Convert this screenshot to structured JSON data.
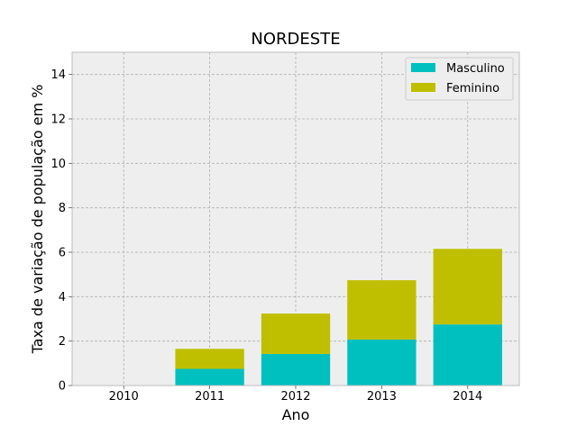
{
  "chart_data": {
    "type": "bar",
    "stacked": true,
    "title": "NORDESTE",
    "xlabel": "Ano",
    "ylabel": "Taxa de variação de população em %",
    "categories": [
      "2010",
      "2011",
      "2012",
      "2013",
      "2014"
    ],
    "series": [
      {
        "name": "Masculino",
        "color": "#00bfbf",
        "values": [
          0,
          0.75,
          1.42,
          2.07,
          2.75
        ]
      },
      {
        "name": "Feminino",
        "color": "#bfbf00",
        "values": [
          0,
          0.9,
          1.82,
          2.67,
          3.4
        ]
      }
    ],
    "ylim": [
      0,
      15
    ],
    "yticks": [
      0,
      2,
      4,
      6,
      8,
      10,
      12,
      14
    ],
    "ytick_labels": [
      "0",
      "2",
      "4",
      "6",
      "8",
      "10",
      "12",
      "14"
    ],
    "grid": true,
    "legend_position": "top-right",
    "colors": {
      "background": "#eeeeee",
      "grid": "#b0b0b0",
      "frame": "#bcbcbc"
    }
  }
}
